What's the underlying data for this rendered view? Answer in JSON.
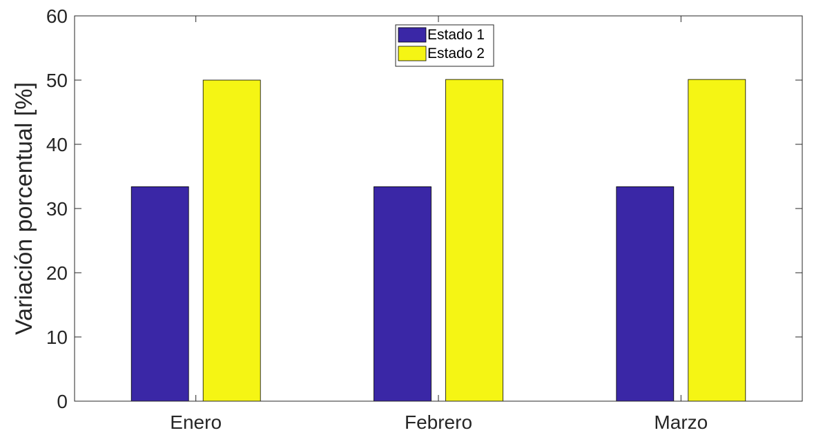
{
  "chart_data": {
    "type": "bar",
    "categories": [
      "Enero",
      "Febrero",
      "Marzo"
    ],
    "series": [
      {
        "name": "Estado 1",
        "values": [
          33.4,
          33.4,
          33.4
        ],
        "color": "#3a27a6"
      },
      {
        "name": "Estado 2",
        "values": [
          50.0,
          50.1,
          50.1
        ],
        "color": "#f5f514"
      }
    ],
    "title": "",
    "xlabel": "",
    "ylabel": "Variación porcentual [%]",
    "ylim": [
      0,
      60
    ],
    "yticks": [
      "0",
      "10",
      "20",
      "30",
      "40",
      "50",
      "60"
    ],
    "grid": false,
    "legend_position": "top-center"
  }
}
